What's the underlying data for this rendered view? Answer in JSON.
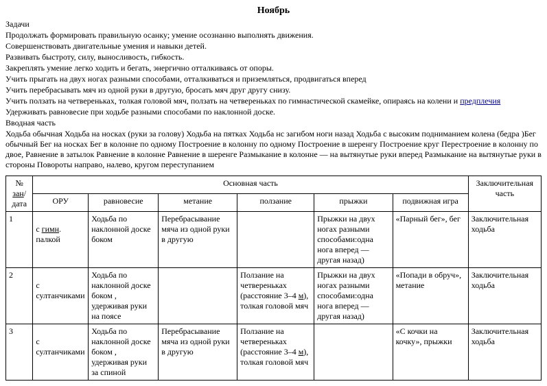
{
  "title": "Ноябрь",
  "section_tasks": "Задачи",
  "tasks": [
    "Продолжать формировать правильную осанку; умение осознанно выполнять движения.",
    "Совершенствовать двигательные умения и навыки детей.",
    "Развивать быстроту, силу, выносливость, гибкость.",
    "Закреплять умение легко ходить и бегать, энергично отталкиваясь от опоры.",
    "Учить прыгать на двух ногах разными способами, отталкиваться и приземляться, продвигаться вперед",
    "Учить перебрасывать мяч из одной руки в другую, бросать  мяч друг другу снизу."
  ],
  "task_crawl_prefix": "Учить ползать на четвереньках, толкая головой мяч, ползать на четвереньках по гимнастической скамейке, опираясь на колени и ",
  "task_crawl_underlined": "предплечия",
  "tasks_after": [
    "Удерживать равновесие при ходьбе разными способами по наклонной доске."
  ],
  "section_intro": "Вводная часть",
  "intro_text": "Ходьба обычная Ходьба на носках (руки за голову) Ходьба на пятках  Ходьба нс загибом ноги назад Ходьба с высоким подниманием колена (бедра )Бег обычный Бег на носках Бег в колонне по одному Построение в колонну по одному Построение в шеренгу Построение круг Перестроение в колонну по двое, Равнение в затылок Равнение в колонне  Равнение в шеренге Размыкание в колонне — на вытянутые руки вперед  Размыкание на вытянутые руки в стороны Повороты направо, налево, кругом переступанием",
  "table": {
    "header_num_prefix": "№ ",
    "header_num_link": "зан",
    "header_num_suffix": "/дата",
    "header_main": "Основная часть",
    "header_final": "Заключительная часть",
    "sub_oru": "ОРУ",
    "sub_balance": "равновесие",
    "sub_throw": "метание",
    "sub_crawl": "ползание",
    "sub_jump": "прыжки",
    "sub_game": "подвижная игра",
    "rows": [
      {
        "num": "1",
        "oru_prefix": "с ",
        "oru_link": "гимн",
        "oru_suffix": ". палкой",
        "balance": "Ходьба по наклонной доске боком",
        "throw": "Перебрасывание мяча из одной руки в другую",
        "crawl_prefix": "",
        "crawl_link": "",
        "crawl_suffix": "",
        "jump": "Прыжки на двух ногах разными способами:одна нога вперед — другая назад)",
        "game": "«Парный бег», бег",
        "final": "Заключительная ходьба"
      },
      {
        "num": "2",
        "oru_prefix": "с султанчиками",
        "oru_link": "",
        "oru_suffix": "",
        "balance": "Ходьба по наклонной доске боком , удерживая руки на поясе",
        "throw": "",
        "crawl_prefix": "Ползание на четвереньках (расстояние 3–4 ",
        "crawl_link": "м",
        "crawl_suffix": "), толкая головой мяч",
        "jump": "Прыжки на двух ногах разными способами:одна нога вперед — другая назад)",
        "game": "«Попади в обруч», метание",
        "final": "Заключительная ходьба"
      },
      {
        "num": "3",
        "oru_prefix": "с султанчиками",
        "oru_link": "",
        "oru_suffix": "",
        "balance": "Ходьба по наклонной доске боком , удерживая руки за спиной",
        "throw": "Перебрасывание мяча из одной руки в другую",
        "crawl_prefix": "Ползание на четвереньках (расстояние 3–4 ",
        "crawl_link": "м",
        "crawl_suffix": "), толкая головой мяч",
        "jump": "",
        "game": "«С кочки на кочку», прыжки",
        "final": "Заключительная ходьба"
      }
    ]
  }
}
